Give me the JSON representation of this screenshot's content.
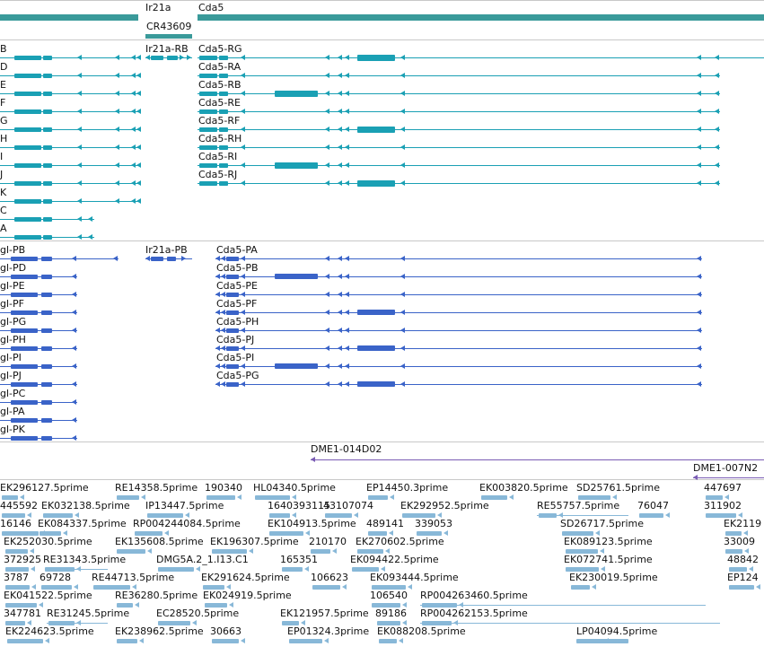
{
  "colors": {
    "gene": "#3a9a9a",
    "transcript": "#1aa0b4",
    "protein": "#3a63c8",
    "clone": "#7a5cb4",
    "est": "#88b8d8"
  },
  "gene_track": {
    "genes": [
      "Ir21a",
      "Cda5",
      "CR43609"
    ]
  },
  "transcript_track": {
    "left_labels": [
      "B",
      "D",
      "E",
      "F",
      "G",
      "H",
      "I",
      "J",
      "K",
      "C",
      "A"
    ],
    "ir21a_label": "Ir21a-RB",
    "cda5_labels": [
      "Cda5-RG",
      "Cda5-RA",
      "Cda5-RB",
      "Cda5-RE",
      "Cda5-RF",
      "Cda5-RH",
      "Cda5-RI",
      "Cda5-RJ"
    ]
  },
  "protein_track": {
    "left_labels": [
      "gl-PB",
      "gl-PD",
      "gl-PE",
      "gl-PF",
      "gl-PG",
      "gl-PH",
      "gl-PI",
      "gl-PJ",
      "gl-PC",
      "gl-PA",
      "gl-PK"
    ],
    "ir21a_label": "Ir21a-PB",
    "cda5_labels": [
      "Cda5-PA",
      "Cda5-PB",
      "Cda5-PE",
      "Cda5-PF",
      "Cda5-PH",
      "Cda5-PJ",
      "Cda5-PI",
      "Cda5-PG"
    ]
  },
  "clone_track": {
    "labels": [
      "DME1-014D02",
      "DME1-007N2"
    ]
  },
  "est_track": {
    "labels": [
      "EK296127.5prime",
      "RE14358.5prime",
      "190340",
      "HL04340.5prime",
      "EP14450.3prime",
      "EK003820.5prime",
      "SD25761.5prime",
      "447697",
      "445592",
      "EK032138.5prime",
      "IP13447.5prime",
      "1640393115",
      "43107074",
      "EK292952.5prime",
      "RE55757.5prime",
      "76047",
      "311902",
      "16146",
      "EK084337.5prime",
      "RP004244084.5prime",
      "EK104913.5prime",
      "489141",
      "339053",
      "SD26717.5prime",
      "EK2119",
      "EK252030.5prime",
      "EK135608.5prime",
      "EK196307.5prime",
      "210170",
      "EK270602.5prime",
      "EK089123.5prime",
      "33009",
      "372925",
      "RE31343.5prime",
      "DMG5A.2_1.I13.C1",
      "165351",
      "EK094422.5prime",
      "EK072741.5prime",
      "48842",
      "3787",
      "69728",
      "RE44713.5prime",
      "EK291624.5prime",
      "106623",
      "EK093444.5prime",
      "EK230019.5prime",
      "EP124",
      "EK041522.5prime",
      "RE36280.5prime",
      "EK024919.5prime",
      "106540",
      "RP004263460.5prime",
      "347781",
      "RE31245.5prime",
      "EC28520.5prime",
      "EK121957.5prime",
      "89186",
      "RP004262153.5prime",
      "EK224623.5prime",
      "EK238962.5prime",
      "30663",
      "EP01324.3prime",
      "EK088208.5prime",
      "LP04094.5prime"
    ]
  }
}
